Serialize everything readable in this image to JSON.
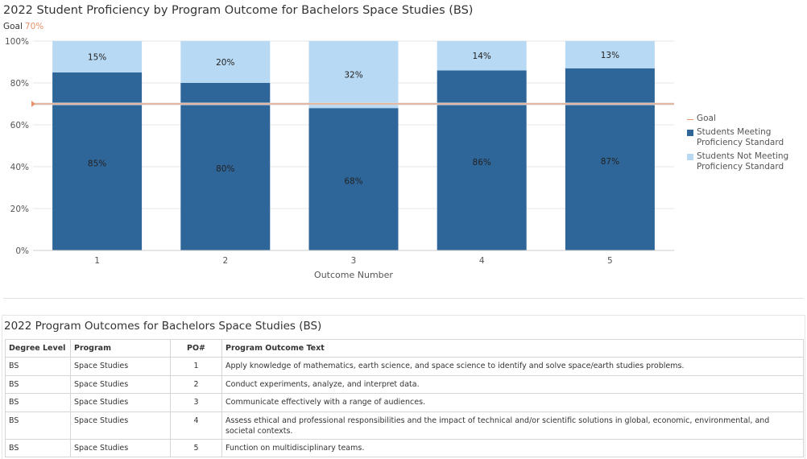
{
  "chart_title": "2022 Student Proficiency by Program Outcome for Bachelors Space Studies (BS)",
  "goal_label": "Goal",
  "goal_value_text": "70%",
  "chart_data": {
    "type": "bar",
    "stacked": true,
    "title": "2022 Student Proficiency by Program Outcome for Bachelors Space Studies (BS)",
    "xlabel": "Outcome Number",
    "ylabel": "",
    "categories": [
      "1",
      "2",
      "3",
      "4",
      "5"
    ],
    "ylim": [
      0,
      100
    ],
    "yticks": [
      0,
      20,
      40,
      60,
      80,
      100
    ],
    "ytick_labels": [
      "0%",
      "20%",
      "40%",
      "60%",
      "80%",
      "100%"
    ],
    "grid": true,
    "goal": 70,
    "series": [
      {
        "name": "Students Meeting Proficiency Standard",
        "color": "#2f6699",
        "values": [
          85,
          80,
          68,
          86,
          87
        ],
        "labels": [
          "85%",
          "80%",
          "68%",
          "86%",
          "87%"
        ]
      },
      {
        "name": "Students Not Meeting Proficiency Standard",
        "color": "#b8d9f3",
        "values": [
          15,
          20,
          32,
          14,
          13
        ],
        "labels": [
          "15%",
          "20%",
          "32%",
          "14%",
          "13%"
        ]
      }
    ],
    "goal_color": "#e8916a",
    "legend_position": "right"
  },
  "legend": [
    {
      "label": "Goal",
      "color": "#e8916a",
      "kind": "line"
    },
    {
      "label": "Students Meeting Proficiency Standard",
      "color": "#2f6699",
      "kind": "box"
    },
    {
      "label": "Students Not Meeting Proficiency Standard",
      "color": "#b8d9f3",
      "kind": "box"
    }
  ],
  "table": {
    "title": "2022 Program Outcomes for Bachelors Space Studies (BS)",
    "headers": [
      "Degree Level",
      "Program",
      "PO#",
      "Program Outcome Text"
    ],
    "rows": [
      [
        "BS",
        "Space Studies",
        "1",
        "Apply knowledge of mathematics, earth science, and space science to identify and solve space/earth studies problems."
      ],
      [
        "BS",
        "Space Studies",
        "2",
        "Conduct experiments, analyze, and interpret data."
      ],
      [
        "BS",
        "Space Studies",
        "3",
        "Communicate effectively with a range of audiences."
      ],
      [
        "BS",
        "Space Studies",
        "4",
        "Assess ethical and professional responsibilities and the impact of technical and/or scientific solutions in global, economic, environmental, and societal contexts."
      ],
      [
        "BS",
        "Space Studies",
        "5",
        "Function on multidisciplinary teams."
      ]
    ]
  }
}
